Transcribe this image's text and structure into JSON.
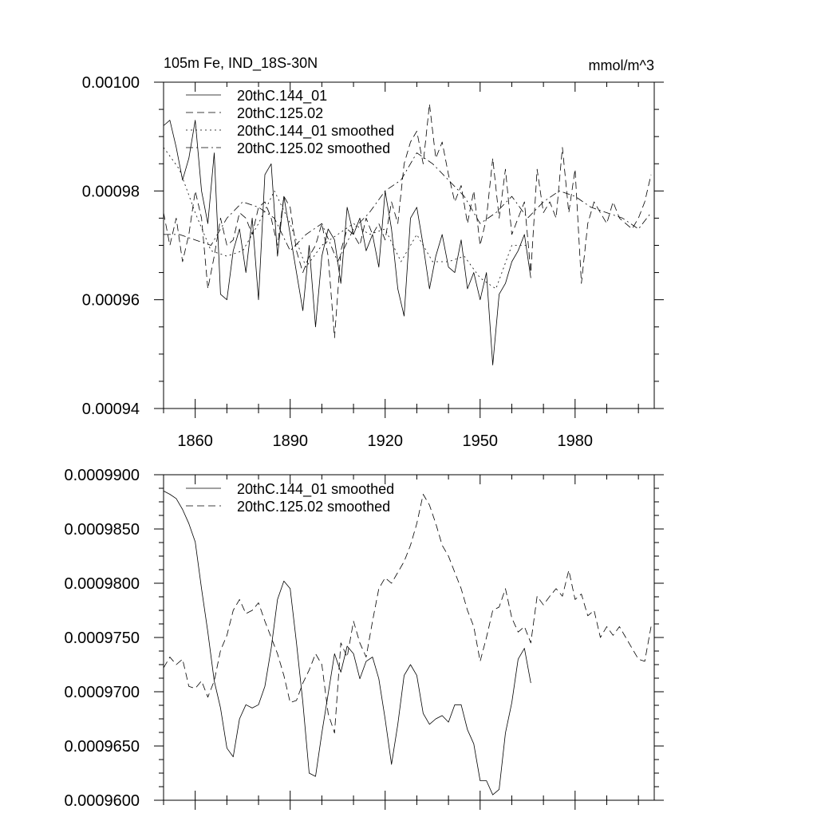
{
  "chart_data": [
    {
      "type": "line",
      "title": "105m Fe, IND_18S-30N",
      "units": "mmol/m^3",
      "xlabel": "",
      "ylabel": "",
      "xlim": [
        1850,
        2005
      ],
      "ylim": [
        0.00094,
        0.001
      ],
      "xticks": [
        1860,
        1890,
        1920,
        1950,
        1980
      ],
      "xtick_labels": [
        "1860",
        "1890",
        "1920",
        "1950",
        "1980"
      ],
      "yticks": [
        0.00094,
        0.00096,
        0.00098,
        0.001
      ],
      "ytick_labels": [
        "0.00094",
        "0.00096",
        "0.00098",
        "0.00100"
      ],
      "legend_position": "top-left",
      "grid": false,
      "series": [
        {
          "name": "20thC.144_01",
          "style": "solid",
          "x": [
            1850,
            1852,
            1854,
            1856,
            1858,
            1860,
            1862,
            1864,
            1866,
            1868,
            1870,
            1872,
            1874,
            1876,
            1878,
            1880,
            1882,
            1884,
            1886,
            1888,
            1890,
            1892,
            1894,
            1896,
            1898,
            1900,
            1902,
            1904,
            1906,
            1908,
            1910,
            1912,
            1914,
            1916,
            1918,
            1920,
            1922,
            1924,
            1926,
            1928,
            1930,
            1932,
            1934,
            1936,
            1938,
            1940,
            1942,
            1944,
            1946,
            1948,
            1950,
            1952,
            1954,
            1956,
            1958,
            1960,
            1962,
            1964,
            1966
          ],
          "values": [
            0.000992,
            0.000993,
            0.000988,
            0.000982,
            0.000986,
            0.000993,
            0.00098,
            0.000974,
            0.000987,
            0.000961,
            0.00096,
            0.000969,
            0.000973,
            0.000965,
            0.000975,
            0.00096,
            0.000983,
            0.000985,
            0.000968,
            0.000979,
            0.000972,
            0.000965,
            0.000958,
            0.00097,
            0.000955,
            0.000968,
            0.000973,
            0.000971,
            0.000963,
            0.000977,
            0.000972,
            0.000975,
            0.000969,
            0.000972,
            0.000966,
            0.00098,
            0.000973,
            0.000962,
            0.000957,
            0.000975,
            0.000977,
            0.00097,
            0.000962,
            0.000968,
            0.000972,
            0.000966,
            0.000965,
            0.000971,
            0.000962,
            0.000965,
            0.00096,
            0.000965,
            0.000948,
            0.000961,
            0.000963,
            0.000967,
            0.000969,
            0.000972,
            0.000964
          ]
        },
        {
          "name": "20thC.125.02",
          "style": "dashed",
          "x": [
            1850,
            1852,
            1854,
            1856,
            1858,
            1860,
            1862,
            1864,
            1866,
            1868,
            1870,
            1872,
            1874,
            1876,
            1878,
            1880,
            1882,
            1884,
            1886,
            1888,
            1890,
            1892,
            1894,
            1896,
            1898,
            1900,
            1902,
            1904,
            1906,
            1908,
            1910,
            1912,
            1914,
            1916,
            1918,
            1920,
            1922,
            1924,
            1926,
            1928,
            1930,
            1932,
            1934,
            1936,
            1938,
            1940,
            1942,
            1944,
            1946,
            1948,
            1950,
            1952,
            1954,
            1956,
            1958,
            1960,
            1962,
            1964,
            1966,
            1968,
            1970,
            1972,
            1974,
            1976,
            1978,
            1980,
            1982,
            1984,
            1986,
            1988,
            1990,
            1992,
            1994,
            1996,
            1998,
            2000,
            2002,
            2004
          ],
          "values": [
            0.000976,
            0.00097,
            0.000975,
            0.000967,
            0.000972,
            0.00098,
            0.000975,
            0.000962,
            0.000968,
            0.000975,
            0.00097,
            0.000971,
            0.000976,
            0.000975,
            0.000972,
            0.000977,
            0.000978,
            0.000975,
            0.00097,
            0.000979,
            0.000977,
            0.000969,
            0.000965,
            0.000968,
            0.00097,
            0.000974,
            0.000968,
            0.000953,
            0.000969,
            0.000973,
            0.000972,
            0.00097,
            0.000975,
            0.000972,
            0.000974,
            0.000971,
            0.000978,
            0.000974,
            0.000985,
            0.000989,
            0.000991,
            0.000985,
            0.000996,
            0.000986,
            0.000989,
            0.000983,
            0.000978,
            0.000981,
            0.000974,
            0.00098,
            0.00097,
            0.000975,
            0.000986,
            0.000975,
            0.000984,
            0.000972,
            0.000975,
            0.000978,
            0.000965,
            0.000984,
            0.000976,
            0.000978,
            0.000975,
            0.000988,
            0.000976,
            0.000984,
            0.000963,
            0.000974,
            0.000978,
            0.000976,
            0.000974,
            0.000978,
            0.000975,
            0.000974,
            0.000973,
            0.000975,
            0.000978,
            0.000983
          ]
        },
        {
          "name": "20thC.144_01 smoothed",
          "style": "dotted",
          "x": [
            1850,
            1855,
            1860,
            1865,
            1870,
            1875,
            1880,
            1885,
            1890,
            1895,
            1900,
            1905,
            1910,
            1915,
            1920,
            1925,
            1930,
            1935,
            1940,
            1945,
            1950,
            1955,
            1960,
            1965
          ],
          "values": [
            0.000988,
            0.000984,
            0.000976,
            0.000969,
            0.000968,
            0.000969,
            0.000974,
            0.00098,
            0.000974,
            0.000966,
            0.00097,
            0.000972,
            0.000974,
            0.000972,
            0.000973,
            0.000967,
            0.000972,
            0.000967,
            0.000967,
            0.000968,
            0.000964,
            0.000962,
            0.00097,
            0.00097
          ]
        },
        {
          "name": "20thC.125.02 smoothed",
          "style": "dash-dot",
          "x": [
            1850,
            1855,
            1860,
            1865,
            1870,
            1875,
            1880,
            1885,
            1890,
            1895,
            1900,
            1905,
            1910,
            1915,
            1920,
            1925,
            1930,
            1935,
            1940,
            1945,
            1950,
            1955,
            1960,
            1965,
            1970,
            1975,
            1980,
            1985,
            1990,
            1995,
            2000,
            2004
          ],
          "values": [
            0.000972,
            0.000972,
            0.000971,
            0.00097,
            0.000975,
            0.000978,
            0.000977,
            0.000975,
            0.000969,
            0.000972,
            0.000974,
            0.000967,
            0.000973,
            0.000976,
            0.00098,
            0.000982,
            0.000987,
            0.000985,
            0.000982,
            0.000979,
            0.000974,
            0.000976,
            0.000979,
            0.000975,
            0.000978,
            0.00098,
            0.000979,
            0.000977,
            0.000976,
            0.000975,
            0.000973,
            0.000976
          ]
        }
      ]
    },
    {
      "type": "line",
      "title": "",
      "xlabel": "",
      "ylabel": "",
      "xlim": [
        1850,
        2005
      ],
      "ylim": [
        0.00096,
        0.00099
      ],
      "xticks": [
        1860,
        1890,
        1920,
        1950,
        1980
      ],
      "yticks": [
        0.00096,
        0.000965,
        0.00097,
        0.000975,
        0.00098,
        0.000985,
        0.00099
      ],
      "ytick_labels": [
        "0.0009600",
        "0.0009650",
        "0.0009700",
        "0.0009750",
        "0.0009800",
        "0.0009850",
        "0.0009900"
      ],
      "legend_position": "top-left",
      "grid": false,
      "series": [
        {
          "name": "20thC.144_01 smoothed",
          "style": "solid",
          "x": [
            1850,
            1852,
            1854,
            1856,
            1858,
            1860,
            1862,
            1864,
            1866,
            1868,
            1870,
            1872,
            1874,
            1876,
            1878,
            1880,
            1882,
            1884,
            1886,
            1888,
            1890,
            1892,
            1894,
            1896,
            1898,
            1900,
            1902,
            1904,
            1906,
            1908,
            1910,
            1912,
            1914,
            1916,
            1918,
            1920,
            1922,
            1924,
            1926,
            1928,
            1930,
            1932,
            1934,
            1936,
            1938,
            1940,
            1942,
            1944,
            1946,
            1948,
            1950,
            1952,
            1954,
            1956,
            1958,
            1960,
            1962,
            1964,
            1966
          ],
          "values": [
            0.0009885,
            0.0009882,
            0.0009878,
            0.0009868,
            0.0009855,
            0.0009838,
            0.0009795,
            0.0009755,
            0.000971,
            0.0009685,
            0.0009648,
            0.000964,
            0.0009675,
            0.0009688,
            0.0009685,
            0.0009688,
            0.0009705,
            0.000974,
            0.0009785,
            0.0009802,
            0.0009795,
            0.0009745,
            0.000969,
            0.0009625,
            0.0009622,
            0.0009662,
            0.0009698,
            0.0009735,
            0.0009718,
            0.0009742,
            0.0009735,
            0.0009712,
            0.0009728,
            0.0009732,
            0.0009712,
            0.0009675,
            0.0009633,
            0.000967,
            0.0009715,
            0.0009725,
            0.0009715,
            0.000968,
            0.000967,
            0.0009675,
            0.0009678,
            0.0009672,
            0.0009688,
            0.0009688,
            0.0009665,
            0.0009652,
            0.0009618,
            0.0009618,
            0.0009605,
            0.000961,
            0.0009662,
            0.000969,
            0.000973,
            0.000974,
            0.0009708
          ]
        },
        {
          "name": "20thC.125.02 smoothed",
          "style": "dashed",
          "x": [
            1850,
            1852,
            1854,
            1856,
            1858,
            1860,
            1862,
            1864,
            1866,
            1868,
            1870,
            1872,
            1874,
            1876,
            1878,
            1880,
            1882,
            1884,
            1886,
            1888,
            1890,
            1892,
            1894,
            1896,
            1898,
            1900,
            1902,
            1904,
            1906,
            1908,
            1910,
            1912,
            1914,
            1916,
            1918,
            1920,
            1922,
            1924,
            1926,
            1928,
            1930,
            1932,
            1934,
            1936,
            1938,
            1940,
            1942,
            1944,
            1946,
            1948,
            1950,
            1952,
            1954,
            1956,
            1958,
            1960,
            1962,
            1964,
            1966,
            1968,
            1970,
            1972,
            1974,
            1976,
            1978,
            1980,
            1982,
            1984,
            1986,
            1988,
            1990,
            1992,
            1994,
            1996,
            1998,
            2000,
            2002,
            2004
          ],
          "values": [
            0.0009722,
            0.0009732,
            0.0009725,
            0.000973,
            0.0009705,
            0.0009703,
            0.000971,
            0.0009695,
            0.000971,
            0.0009738,
            0.0009752,
            0.0009775,
            0.0009785,
            0.0009772,
            0.0009775,
            0.0009782,
            0.0009765,
            0.000975,
            0.0009735,
            0.0009715,
            0.000969,
            0.0009692,
            0.0009708,
            0.000972,
            0.0009735,
            0.0009725,
            0.000968,
            0.0009662,
            0.0009745,
            0.0009732,
            0.0009765,
            0.0009745,
            0.0009732,
            0.0009765,
            0.0009795,
            0.0009805,
            0.00098,
            0.000981,
            0.000982,
            0.0009835,
            0.0009855,
            0.0009882,
            0.0009872,
            0.0009855,
            0.0009835,
            0.0009825,
            0.000981,
            0.0009795,
            0.0009775,
            0.000976,
            0.0009728,
            0.000975,
            0.0009775,
            0.0009778,
            0.0009795,
            0.0009768,
            0.0009755,
            0.000976,
            0.0009745,
            0.0009788,
            0.000978,
            0.0009788,
            0.0009795,
            0.0009788,
            0.0009812,
            0.0009785,
            0.000979,
            0.000977,
            0.0009775,
            0.000975,
            0.000976,
            0.0009752,
            0.000976,
            0.000975,
            0.000974,
            0.000973,
            0.0009728,
            0.000976
          ]
        }
      ]
    }
  ]
}
